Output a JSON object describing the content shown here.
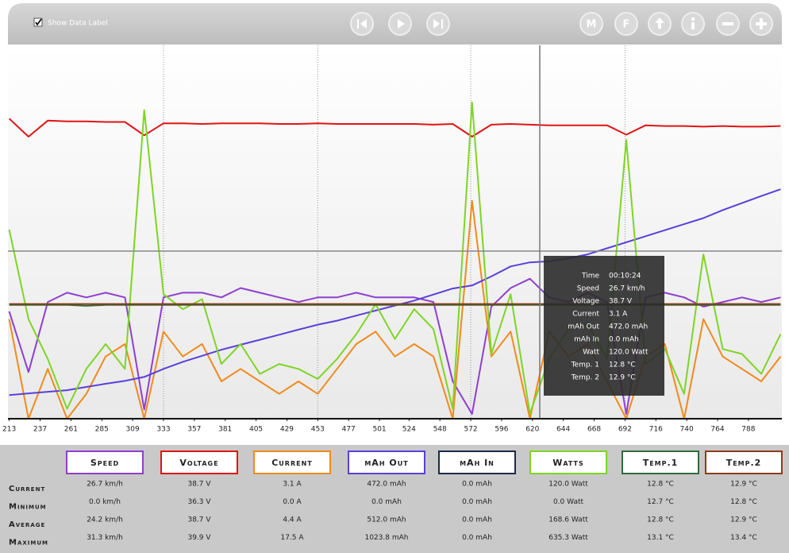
{
  "header": {
    "checkbox_label": "Show Data Label",
    "buttons": [
      "M",
      "F"
    ]
  },
  "chart_data": {
    "type": "line",
    "x": [
      213,
      228,
      243,
      258,
      273,
      288,
      303,
      318,
      333,
      348,
      363,
      378,
      393,
      408,
      423,
      438,
      453,
      468,
      483,
      498,
      513,
      528,
      543,
      558,
      573,
      588,
      603,
      618,
      633,
      648,
      663,
      678,
      693,
      708,
      723,
      738,
      753,
      768,
      783,
      798,
      813
    ],
    "xlim": [
      212,
      814
    ],
    "xticks": [
      213,
      237,
      261,
      285,
      309,
      333,
      357,
      381,
      405,
      429,
      453,
      477,
      501,
      524,
      548,
      572,
      596,
      620,
      644,
      668,
      692,
      716,
      740,
      764,
      788
    ],
    "grid": true,
    "series": [
      {
        "name": "Speed",
        "color": "#8e3fcf",
        "ylim": [
          0,
          80
        ],
        "values": [
          23,
          10,
          25,
          27,
          26,
          27,
          26,
          2,
          26,
          27,
          27,
          26,
          28,
          27,
          26,
          25,
          26,
          26,
          27,
          26,
          26,
          26,
          25,
          8,
          1,
          24,
          28,
          30,
          26,
          25,
          27,
          25,
          1,
          26,
          27,
          26,
          24,
          25,
          26,
          25,
          26
        ]
      },
      {
        "name": "Voltage",
        "color": "#e01414",
        "ylim": [
          -6,
          50
        ],
        "values": [
          39.0,
          36.3,
          38.7,
          38.6,
          38.6,
          38.5,
          38.5,
          36.5,
          38.3,
          38.3,
          38.2,
          38.3,
          38.3,
          38.3,
          38.2,
          38.2,
          38.3,
          38.2,
          38.2,
          38.2,
          38.2,
          38.2,
          38.1,
          38.2,
          36.3,
          38.1,
          38.2,
          38.1,
          38.0,
          38.0,
          38.0,
          38.0,
          36.6,
          38.0,
          37.9,
          37.9,
          37.8,
          37.9,
          37.8,
          37.8,
          37.9
        ]
      },
      {
        "name": "Current",
        "color": "#f08a1c",
        "ylim": [
          0,
          30
        ],
        "values": [
          8,
          0,
          4,
          0,
          2,
          5,
          6,
          0,
          7,
          5,
          6,
          3,
          4,
          3,
          2,
          3,
          2,
          4,
          6,
          7,
          5,
          6,
          5,
          0,
          17.5,
          5,
          7,
          0,
          7,
          5,
          6,
          3,
          0,
          5,
          6,
          0,
          8,
          5,
          4,
          3,
          5
        ]
      },
      {
        "name": "mAh Out",
        "color": "#5b3fd9",
        "ylim": [
          -118,
          1740
        ],
        "values": [
          0,
          8,
          16,
          24,
          40,
          56,
          70,
          90,
          130,
          165,
          195,
          225,
          250,
          275,
          300,
          325,
          350,
          370,
          395,
          420,
          445,
          470,
          500,
          530,
          545,
          590,
          640,
          660,
          665,
          680,
          700,
          730,
          760,
          790,
          820,
          850,
          880,
          920,
          955,
          990,
          1023.8
        ]
      },
      {
        "name": "mAh In",
        "color": "#1c2a48",
        "ylim": [
          0,
          100
        ],
        "values": [
          0,
          0,
          0,
          0,
          0,
          0,
          0,
          0,
          0,
          0,
          0,
          0,
          0,
          0,
          0,
          0,
          0,
          0,
          0,
          0,
          0,
          0,
          0,
          0,
          0,
          0,
          0,
          0,
          0,
          0,
          0,
          0,
          0,
          0,
          0,
          0,
          0,
          0,
          0,
          0,
          0
        ]
      },
      {
        "name": "Watts",
        "color": "#7fd424",
        "ylim": [
          0,
          750
        ],
        "values": [
          380,
          200,
          120,
          20,
          100,
          150,
          100,
          620,
          250,
          220,
          240,
          110,
          150,
          90,
          110,
          100,
          80,
          120,
          170,
          230,
          160,
          220,
          180,
          20,
          635.3,
          130,
          250,
          10,
          120,
          180,
          190,
          120,
          560,
          110,
          140,
          50,
          330,
          140,
          130,
          90,
          170
        ]
      },
      {
        "name": "Temp.1",
        "color": "#2f6b3b",
        "ylim": [
          0,
          42
        ],
        "values": [
          12.8,
          12.8,
          12.8,
          12.8,
          12.7,
          12.8,
          12.8,
          12.8,
          12.8,
          12.8,
          12.8,
          12.8,
          12.8,
          12.8,
          12.8,
          12.8,
          12.8,
          12.8,
          12.8,
          12.8,
          12.8,
          12.8,
          12.8,
          12.8,
          12.8,
          12.8,
          12.8,
          12.8,
          12.8,
          12.8,
          12.8,
          12.8,
          12.8,
          12.8,
          12.8,
          12.8,
          12.8,
          12.8,
          12.8,
          12.8,
          12.8
        ]
      },
      {
        "name": "Temp.2",
        "color": "#8c3b1b",
        "ylim": [
          0,
          42
        ],
        "values": [
          12.9,
          12.9,
          12.9,
          12.9,
          12.9,
          12.9,
          12.9,
          12.9,
          12.9,
          12.9,
          12.9,
          12.9,
          12.9,
          12.9,
          12.9,
          12.9,
          12.9,
          12.9,
          12.9,
          12.9,
          12.9,
          12.9,
          12.9,
          12.9,
          12.9,
          12.9,
          12.9,
          12.9,
          12.9,
          12.9,
          12.9,
          12.9,
          12.9,
          12.9,
          12.9,
          12.9,
          12.9,
          12.9,
          12.9,
          12.9,
          12.9
        ]
      }
    ]
  },
  "tooltip": [
    [
      "Time",
      "00:10:24"
    ],
    [
      "Speed",
      "26.7 km/h"
    ],
    [
      "Voltage",
      "38.7 V"
    ],
    [
      "Current",
      "3.1 A"
    ],
    [
      "mAh Out",
      "472.0 mAh"
    ],
    [
      "mAh In",
      "0.0 mAh"
    ],
    [
      "Watt",
      "120.0 Watt"
    ],
    [
      "Temp. 1",
      "12.8 °C"
    ],
    [
      "Temp. 2",
      "12.9 °C"
    ]
  ],
  "stats": {
    "rows": [
      {
        "label": "Current",
        "cells": [
          "26.7 km/h",
          "38.7 V",
          "3.1 A",
          "472.0 mAh",
          "0.0 mAh",
          "120.0 Watt",
          "12.8 °C",
          "12.9 °C"
        ]
      },
      {
        "label": "Minimum",
        "cells": [
          "0.0 km/h",
          "36.3 V",
          "0.0 A",
          "0.0 mAh",
          "0.0 mAh",
          "0.0 Watt",
          "12.7 °C",
          "12.8 °C"
        ]
      },
      {
        "label": "Average",
        "cells": [
          "24.2 km/h",
          "38.7 V",
          "4.4 A",
          "512.0 mAh",
          "0.0 mAh",
          "168.6 Watt",
          "12.8 °C",
          "12.9 °C"
        ]
      },
      {
        "label": "Maximum",
        "cells": [
          "31.3 km/h",
          "39.9 V",
          "17.5 A",
          "1023.8 mAh",
          "0.0 mAh",
          "635.3 Watt",
          "13.1 °C",
          "13.4 °C"
        ]
      }
    ]
  }
}
